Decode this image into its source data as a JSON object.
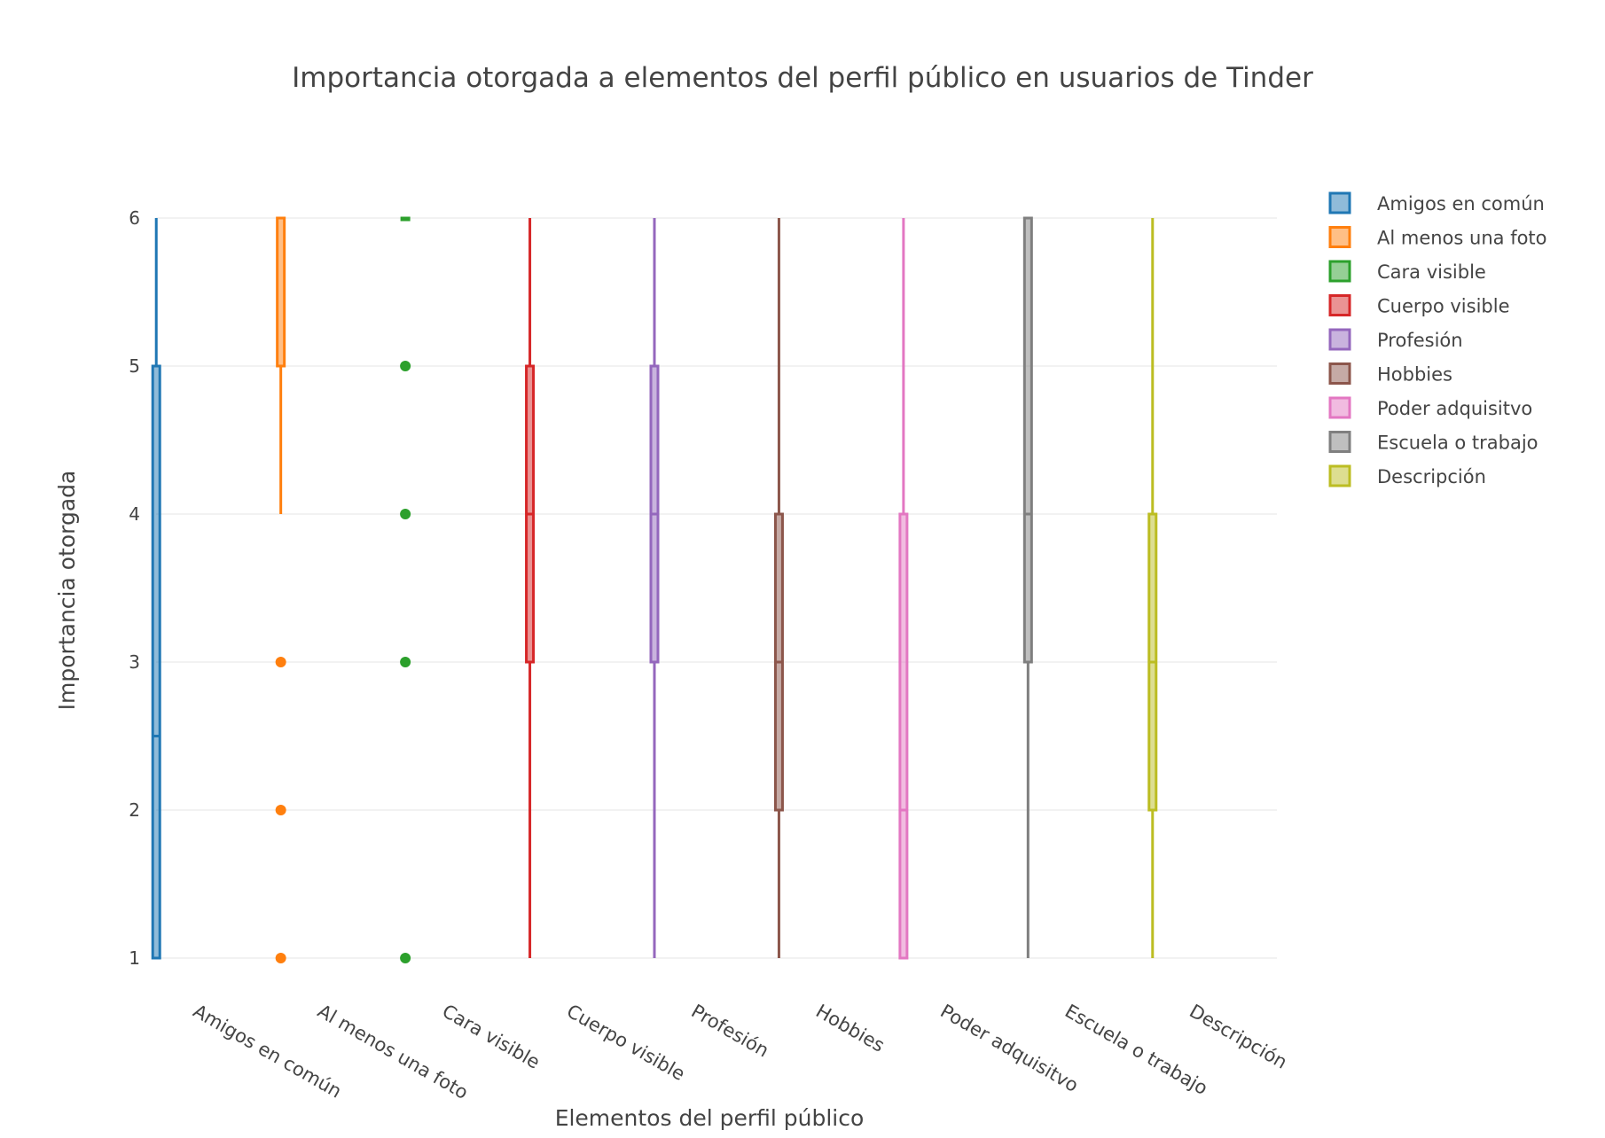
{
  "chart_data": {
    "type": "box",
    "title": "Importancia otorgada a elementos del perfil público en usuarios de Tinder",
    "xlabel": "Elementos del perfil público",
    "ylabel": "Importancia otorgada",
    "ylim": [
      1,
      6
    ],
    "yticks": [
      1,
      2,
      3,
      4,
      5,
      6
    ],
    "grid": true,
    "legend_position": "top-right",
    "categories": [
      "Amigos en común",
      "Al menos una foto",
      "Cara visible",
      "Cuerpo visible",
      "Profesión",
      "Hobbies",
      "Poder adquisitvo",
      "Escuela o trabajo",
      "Descripción"
    ],
    "series": [
      {
        "name": "Amigos en común",
        "color": "#1f77b4",
        "min": 1,
        "q1": 1,
        "median": 2.5,
        "q3": 5,
        "max": 6,
        "outliers": []
      },
      {
        "name": "Al menos una foto",
        "color": "#ff7f0e",
        "min": 4,
        "q1": 5,
        "median": 6,
        "q3": 6,
        "max": 6,
        "outliers": [
          1,
          2,
          3
        ]
      },
      {
        "name": "Cara visible",
        "color": "#2ca02c",
        "min": 6,
        "q1": 6,
        "median": 6,
        "q3": 6,
        "max": 6,
        "outliers": [
          1,
          3,
          4,
          5
        ]
      },
      {
        "name": "Cuerpo visible",
        "color": "#d62728",
        "min": 1,
        "q1": 3,
        "median": 4,
        "q3": 5,
        "max": 6,
        "outliers": []
      },
      {
        "name": "Profesión",
        "color": "#9467bd",
        "min": 1,
        "q1": 3,
        "median": 4,
        "q3": 5,
        "max": 6,
        "outliers": []
      },
      {
        "name": "Hobbies",
        "color": "#8c564b",
        "min": 1,
        "q1": 2,
        "median": 3,
        "q3": 4,
        "max": 6,
        "outliers": []
      },
      {
        "name": "Poder adquisitvo",
        "color": "#e377c2",
        "min": 1,
        "q1": 1,
        "median": 2,
        "q3": 4,
        "max": 6,
        "outliers": []
      },
      {
        "name": "Escuela o trabajo",
        "color": "#7f7f7f",
        "min": 1,
        "q1": 3,
        "median": 4,
        "q3": 6,
        "max": 6,
        "outliers": []
      },
      {
        "name": "Descripción",
        "color": "#bcbd22",
        "min": 1,
        "q1": 2,
        "median": 3,
        "q3": 4,
        "max": 6,
        "outliers": []
      }
    ]
  }
}
